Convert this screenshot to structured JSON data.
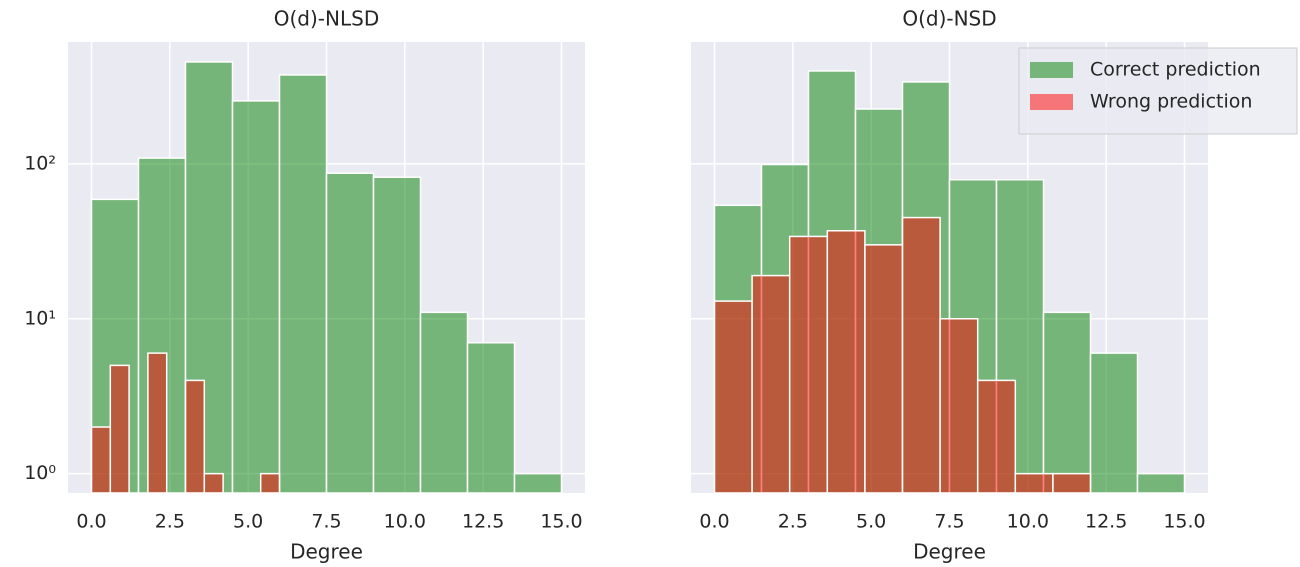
{
  "chart_data": [
    {
      "type": "histogram",
      "title": "O(d)-NLSD",
      "xlabel": "Degree",
      "log_y": true,
      "grid": true,
      "alpha": 0.5,
      "xlim": [
        -0.75,
        15.75
      ],
      "ylim": [
        0.75,
        612
      ],
      "xticks": [
        {
          "value": 0,
          "label": "0.0"
        },
        {
          "value": 2.5,
          "label": "2.5"
        },
        {
          "value": 5,
          "label": "5.0"
        },
        {
          "value": 7.5,
          "label": "7.5"
        },
        {
          "value": 10,
          "label": "10.0"
        },
        {
          "value": 12.5,
          "label": "12.5"
        },
        {
          "value": 15,
          "label": "15.0"
        }
      ],
      "yticks": [
        {
          "value": 1,
          "label": "10⁰"
        },
        {
          "value": 10,
          "label": "10¹"
        },
        {
          "value": 100,
          "label": "10²"
        }
      ],
      "series": [
        {
          "color": "green",
          "bins": [
            0,
            1.5,
            3,
            4.5,
            6,
            7.5,
            9,
            10.5,
            12,
            13.5,
            15
          ],
          "values": [
            59,
            109,
            455,
            255,
            375,
            87,
            82,
            11,
            7,
            1
          ]
        },
        {
          "color": "red",
          "bins": [
            0,
            0.6,
            1.2,
            1.8,
            2.4,
            3,
            3.6,
            4.2,
            4.8,
            5.4,
            6
          ],
          "values": [
            2,
            5,
            0,
            6,
            0,
            4,
            1,
            0,
            0,
            1
          ]
        }
      ]
    },
    {
      "type": "histogram",
      "title": "O(d)-NSD",
      "xlabel": "Degree",
      "log_y": true,
      "grid": true,
      "alpha": 0.5,
      "legend": "upper right",
      "xlim": [
        -0.75,
        15.75
      ],
      "ylim": [
        0.75,
        612
      ],
      "xticks": [
        {
          "value": 0,
          "label": "0.0"
        },
        {
          "value": 2.5,
          "label": "2.5"
        },
        {
          "value": 5,
          "label": "5.0"
        },
        {
          "value": 7.5,
          "label": "7.5"
        },
        {
          "value": 10,
          "label": "10.0"
        },
        {
          "value": 12.5,
          "label": "12.5"
        },
        {
          "value": 15,
          "label": "15.0"
        }
      ],
      "series": [
        {
          "name": "Correct prediction",
          "color": "green",
          "bins": [
            0,
            1.5,
            3,
            4.5,
            6,
            7.5,
            9,
            10.5,
            12,
            13.5,
            15
          ],
          "values": [
            54,
            99,
            398,
            226,
            338,
            79,
            79,
            11,
            6,
            1
          ]
        },
        {
          "name": "Wrong prediction",
          "color": "red",
          "bins": [
            0,
            1.2,
            2.4,
            3.6,
            4.8,
            6,
            7.2,
            8.4,
            9.6,
            10.8,
            12
          ],
          "values": [
            13,
            19,
            34,
            37,
            30,
            45,
            10,
            4,
            1,
            1
          ]
        }
      ]
    }
  ]
}
